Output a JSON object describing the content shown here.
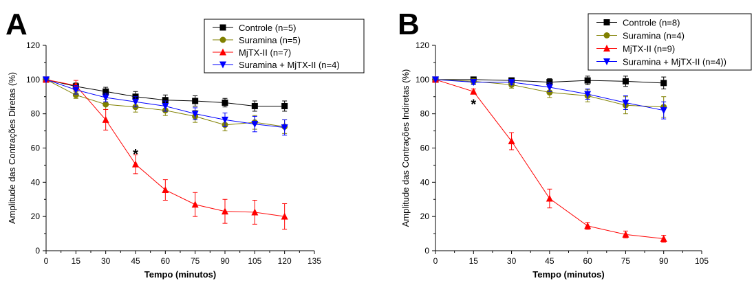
{
  "chart_data": [
    {
      "type": "line",
      "panel_label": "A",
      "xlabel": "Tempo (minutos)",
      "ylabel": "Amplitude das Contrações Diretas (%)",
      "xlim": [
        0,
        135
      ],
      "ylim": [
        0,
        120
      ],
      "xticks": [
        0,
        15,
        30,
        45,
        60,
        75,
        90,
        105,
        120,
        135
      ],
      "yticks": [
        0,
        20,
        40,
        60,
        80,
        100,
        120
      ],
      "x": [
        0,
        15,
        30,
        45,
        60,
        75,
        90,
        105,
        120
      ],
      "legend_position": "top-right",
      "grid": false,
      "annotations": [
        {
          "text": "*",
          "x": 45,
          "y": 57
        }
      ],
      "series": [
        {
          "name": "Controle (n=5)",
          "color": "#000000",
          "marker": "square",
          "values": [
            100,
            96,
            93,
            90,
            88,
            87.5,
            86.5,
            84.5,
            84.5
          ],
          "errors": [
            0,
            2,
            2.5,
            3,
            3,
            3,
            2.5,
            3,
            3
          ]
        },
        {
          "name": "Suramina (n=5)",
          "color": "#808000",
          "marker": "circle",
          "values": [
            100,
            91,
            85.5,
            84,
            82,
            78.5,
            73.5,
            75,
            72.5
          ],
          "errors": [
            0,
            2,
            3,
            3,
            3,
            3.5,
            3.5,
            4,
            4
          ]
        },
        {
          "name": "MjTX-II (n=7)",
          "color": "#ff0000",
          "marker": "triangle-up",
          "values": [
            100,
            96.5,
            76.5,
            50.5,
            35.5,
            27,
            23,
            22.5,
            20
          ],
          "errors": [
            0,
            3,
            6,
            5.5,
            6,
            7,
            7,
            7,
            7.5
          ]
        },
        {
          "name": "Suramina + MjTX-II (n=4)",
          "color": "#0000ff",
          "marker": "triangle-down",
          "values": [
            100,
            94,
            89.5,
            87,
            84.5,
            80,
            76.5,
            74,
            72
          ],
          "errors": [
            0,
            2.5,
            2.5,
            3,
            3,
            3.5,
            4,
            4.5,
            4.5
          ]
        }
      ]
    },
    {
      "type": "line",
      "panel_label": "B",
      "xlabel": "Tempo (minutos)",
      "ylabel": "Amplitude das Contrações Indiretas (%)",
      "xlim": [
        0,
        105
      ],
      "ylim": [
        0,
        120
      ],
      "xticks": [
        0,
        15,
        30,
        45,
        60,
        75,
        90,
        105
      ],
      "yticks": [
        0,
        20,
        40,
        60,
        80,
        100,
        120
      ],
      "x": [
        0,
        15,
        30,
        45,
        60,
        75,
        90
      ],
      "legend_position": "top-right",
      "grid": false,
      "annotations": [
        {
          "text": "*",
          "x": 15,
          "y": 86
        }
      ],
      "series": [
        {
          "name": "Controle (n=8)",
          "color": "#000000",
          "marker": "square",
          "values": [
            100,
            100,
            99.5,
            98.5,
            99.5,
            99,
            98
          ],
          "errors": [
            0,
            1,
            1.5,
            2,
            2.5,
            3,
            3.5
          ]
        },
        {
          "name": "Suramina (n=4)",
          "color": "#808000",
          "marker": "circle",
          "values": [
            100,
            99,
            97,
            92.5,
            90.5,
            85,
            84
          ],
          "errors": [
            0,
            1.5,
            2,
            3,
            3.5,
            5,
            6
          ]
        },
        {
          "name": "MjTX-II (n=9)",
          "color": "#ff0000",
          "marker": "triangle-up",
          "values": [
            100,
            93,
            64,
            30.5,
            14.5,
            9.5,
            7
          ],
          "errors": [
            0,
            1.5,
            5,
            5.5,
            2,
            2,
            2
          ]
        },
        {
          "name": "Suramina + MjTX-II (n=4))",
          "color": "#0000ff",
          "marker": "triangle-down",
          "values": [
            100,
            98.5,
            98.5,
            95.5,
            91.5,
            86.5,
            82
          ],
          "errors": [
            0,
            1.5,
            1.5,
            2.5,
            3,
            4,
            5
          ]
        }
      ]
    }
  ]
}
